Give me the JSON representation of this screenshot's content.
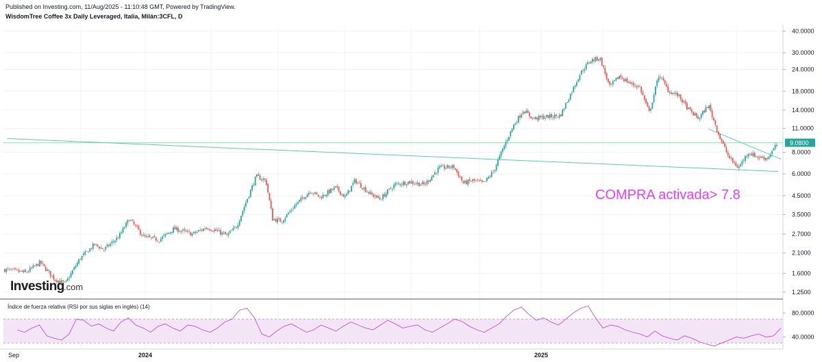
{
  "header": {
    "published": "Published on Investing.com, 11/Aug/2025 - 11:10:48 GMT, Powered by TradingView.",
    "symbol": "WisdomTree Coffee 3x Daily Leveraged, Italia, Milán:3CFL, D"
  },
  "logo": {
    "text": "Investing",
    "suffix": ".com"
  },
  "annotation": "COMPRA  activada> 7.8",
  "rsi_title": "Índice de fuerza relativa (RSI por sus siglas en inglés) (14)",
  "colors": {
    "up": "#26a69a",
    "down": "#ef5350",
    "trendline": "#5cc9ae",
    "price_line": "#26a69a",
    "annotation": "#e040fb",
    "rsi_line": "#b457c9",
    "rsi_band": "#f3e5f5",
    "price_tag": "#26a69a"
  },
  "chart_data": [
    {
      "type": "candlestick",
      "title": "WisdomTree Coffee 3x Daily Leveraged, Italia, Milán:3CFL, D",
      "y_scale": "log",
      "ylim": [
        1.15,
        42.0
      ],
      "y_ticks": [
        "40.0000",
        "30.0000",
        "24.0000",
        "18.0000",
        "14.0000",
        "11.0000",
        "8.0000",
        "6.0000",
        "4.5000",
        "3.5000",
        "2.7000",
        "2.1000",
        "1.6000",
        "1.2500"
      ],
      "x_ticks": [
        "Sep",
        "2024",
        "2025"
      ],
      "last_price": "9.0800",
      "price_path": [
        {
          "date": "2023-09-01",
          "close": 1.68
        },
        {
          "date": "2023-09-20",
          "close": 1.62
        },
        {
          "date": "2023-10-05",
          "close": 1.85
        },
        {
          "date": "2023-10-20",
          "close": 1.48
        },
        {
          "date": "2023-10-31",
          "close": 1.4
        },
        {
          "date": "2023-11-15",
          "close": 1.95
        },
        {
          "date": "2023-11-30",
          "close": 2.35
        },
        {
          "date": "2023-12-10",
          "close": 2.2
        },
        {
          "date": "2023-12-25",
          "close": 2.6
        },
        {
          "date": "2024-01-05",
          "close": 3.3
        },
        {
          "date": "2024-01-20",
          "close": 2.6
        },
        {
          "date": "2024-02-05",
          "close": 2.5
        },
        {
          "date": "2024-02-20",
          "close": 2.9
        },
        {
          "date": "2024-03-10",
          "close": 2.7
        },
        {
          "date": "2024-03-25",
          "close": 2.95
        },
        {
          "date": "2024-04-05",
          "close": 2.8
        },
        {
          "date": "2024-04-15",
          "close": 2.65
        },
        {
          "date": "2024-04-25",
          "close": 3.0
        },
        {
          "date": "2024-05-05",
          "close": 4.2
        },
        {
          "date": "2024-05-15",
          "close": 5.8
        },
        {
          "date": "2024-05-25",
          "close": 5.5
        },
        {
          "date": "2024-06-01",
          "close": 3.3
        },
        {
          "date": "2024-06-10",
          "close": 3.2
        },
        {
          "date": "2024-06-25",
          "close": 4.0
        },
        {
          "date": "2024-07-10",
          "close": 4.8
        },
        {
          "date": "2024-07-20",
          "close": 4.4
        },
        {
          "date": "2024-08-05",
          "close": 5.0
        },
        {
          "date": "2024-08-15",
          "close": 4.4
        },
        {
          "date": "2024-08-25",
          "close": 5.5
        },
        {
          "date": "2024-09-10",
          "close": 4.6
        },
        {
          "date": "2024-09-20",
          "close": 4.3
        },
        {
          "date": "2024-10-05",
          "close": 5.2
        },
        {
          "date": "2024-10-20",
          "close": 5.4
        },
        {
          "date": "2024-11-05",
          "close": 5.2
        },
        {
          "date": "2024-11-20",
          "close": 6.5
        },
        {
          "date": "2024-12-05",
          "close": 6.6
        },
        {
          "date": "2024-12-15",
          "close": 5.3
        },
        {
          "date": "2024-12-25",
          "close": 5.5
        },
        {
          "date": "2025-01-05",
          "close": 5.3
        },
        {
          "date": "2025-01-15",
          "close": 6.2
        },
        {
          "date": "2025-01-28",
          "close": 9.2
        },
        {
          "date": "2025-02-05",
          "close": 11.5
        },
        {
          "date": "2025-02-15",
          "close": 14.0
        },
        {
          "date": "2025-02-25",
          "close": 12.5
        },
        {
          "date": "2025-03-10",
          "close": 12.8
        },
        {
          "date": "2025-03-25",
          "close": 13.0
        },
        {
          "date": "2025-04-05",
          "close": 17.5
        },
        {
          "date": "2025-04-15",
          "close": 23.0
        },
        {
          "date": "2025-04-25",
          "close": 27.0
        },
        {
          "date": "2025-05-05",
          "close": 28.0
        },
        {
          "date": "2025-05-15",
          "close": 19.0
        },
        {
          "date": "2025-05-25",
          "close": 22.0
        },
        {
          "date": "2025-06-05",
          "close": 20.0
        },
        {
          "date": "2025-06-15",
          "close": 19.0
        },
        {
          "date": "2025-06-25",
          "close": 13.5
        },
        {
          "date": "2025-07-05",
          "close": 22.5
        },
        {
          "date": "2025-07-15",
          "close": 18.0
        },
        {
          "date": "2025-07-25",
          "close": 17.0
        },
        {
          "date": "2025-08-05",
          "close": 14.0
        },
        {
          "date": "2025-08-15",
          "close": 12.5
        },
        {
          "date": "2025-08-25",
          "close": 15.0
        },
        {
          "date": "2025-09-05",
          "close": 10.0
        },
        {
          "date": "2025-09-15",
          "close": 7.5
        },
        {
          "date": "2025-09-25",
          "close": 6.5
        },
        {
          "date": "2025-10-05",
          "close": 8.0
        },
        {
          "date": "2025-10-15",
          "close": 7.5
        },
        {
          "date": "2025-10-25",
          "close": 7.4
        },
        {
          "date": "2025-11-05",
          "close": 9.08
        }
      ],
      "horizontal_line": 9.08,
      "trendlines": [
        {
          "from": {
            "date": "2023-09-01",
            "price": 9.6
          },
          "to": {
            "date": "2025-11-05",
            "price": 6.2
          }
        },
        {
          "from": {
            "date": "2025-08-25",
            "price": 10.9
          },
          "to": {
            "date": "2025-11-08",
            "price": 7.3
          }
        }
      ]
    },
    {
      "type": "line",
      "title": "Índice de fuerza relativa (RSI por sus siglas en inglés) (14)",
      "ylim": [
        20,
        100
      ],
      "y_ticks": [
        "80.0000",
        "40.0000"
      ],
      "bands": [
        30,
        70
      ],
      "series": [
        {
          "name": "RSI",
          "values": [
            52,
            48,
            55,
            60,
            42,
            38,
            35,
            45,
            70,
            68,
            58,
            62,
            55,
            50,
            65,
            72,
            60,
            55,
            48,
            58,
            62,
            55,
            50,
            60,
            58,
            52,
            48,
            55,
            65,
            70,
            85,
            88,
            72,
            45,
            40,
            50,
            58,
            62,
            55,
            48,
            52,
            60,
            55,
            50,
            58,
            65,
            60,
            55,
            52,
            60,
            68,
            62,
            55,
            58,
            60,
            52,
            48,
            55,
            62,
            70,
            66,
            58,
            52,
            48,
            55,
            62,
            75,
            85,
            90,
            78,
            68,
            72,
            65,
            60,
            70,
            80,
            88,
            92,
            72,
            55,
            60,
            58,
            52,
            48,
            45,
            40,
            50,
            42,
            38,
            35,
            42,
            38,
            32,
            28,
            25,
            30,
            35,
            40,
            38,
            42,
            45,
            40,
            42,
            55
          ]
        }
      ]
    }
  ]
}
